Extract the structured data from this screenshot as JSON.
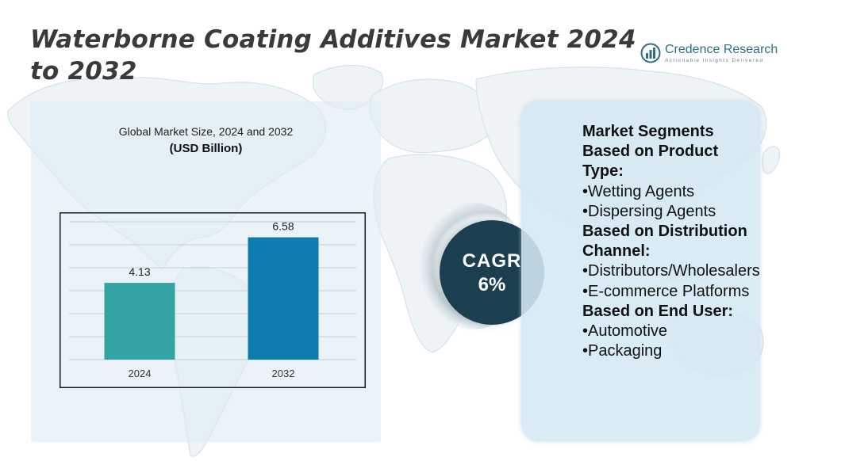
{
  "title": "Waterborne Coating Additives Market 2024 to 2032",
  "brand": {
    "name": "Credence Research",
    "tagline": "Actionable Insights Delivered",
    "icon": "bar-chart-globe-icon"
  },
  "colors": {
    "bar_2024": "#34a3a3",
    "bar_2032": "#0f7cb0",
    "cagr_circle": "#1c3f4f",
    "map": "#dbe6ec",
    "brand": "#2f6f86"
  },
  "chart_data": {
    "type": "bar",
    "title": "Global Market Size, 2024 and 2032",
    "unit": "(USD Billion)",
    "categories": [
      "2024",
      "2032"
    ],
    "values": [
      4.13,
      6.58
    ],
    "value_labels": [
      "4.13",
      "6.58"
    ],
    "ylim": [
      0,
      7.5
    ],
    "grid": true,
    "legend": "none"
  },
  "cagr": {
    "label": "CAGR",
    "value": "6%"
  },
  "segments": [
    {
      "kind": "head",
      "text": "Market Segments Based on Product Type:"
    },
    {
      "kind": "item",
      "text": "•Wetting Agents"
    },
    {
      "kind": "item",
      "text": "•Dispersing Agents"
    },
    {
      "kind": "head",
      "text": "Based on Distribution Channel:"
    },
    {
      "kind": "item",
      "text": "•Distributors/Wholesalers"
    },
    {
      "kind": "item",
      "text": "•E-commerce Platforms"
    },
    {
      "kind": "head",
      "text": "Based on End User:"
    },
    {
      "kind": "item",
      "text": "•Automotive"
    },
    {
      "kind": "item",
      "text": "•Packaging"
    }
  ]
}
